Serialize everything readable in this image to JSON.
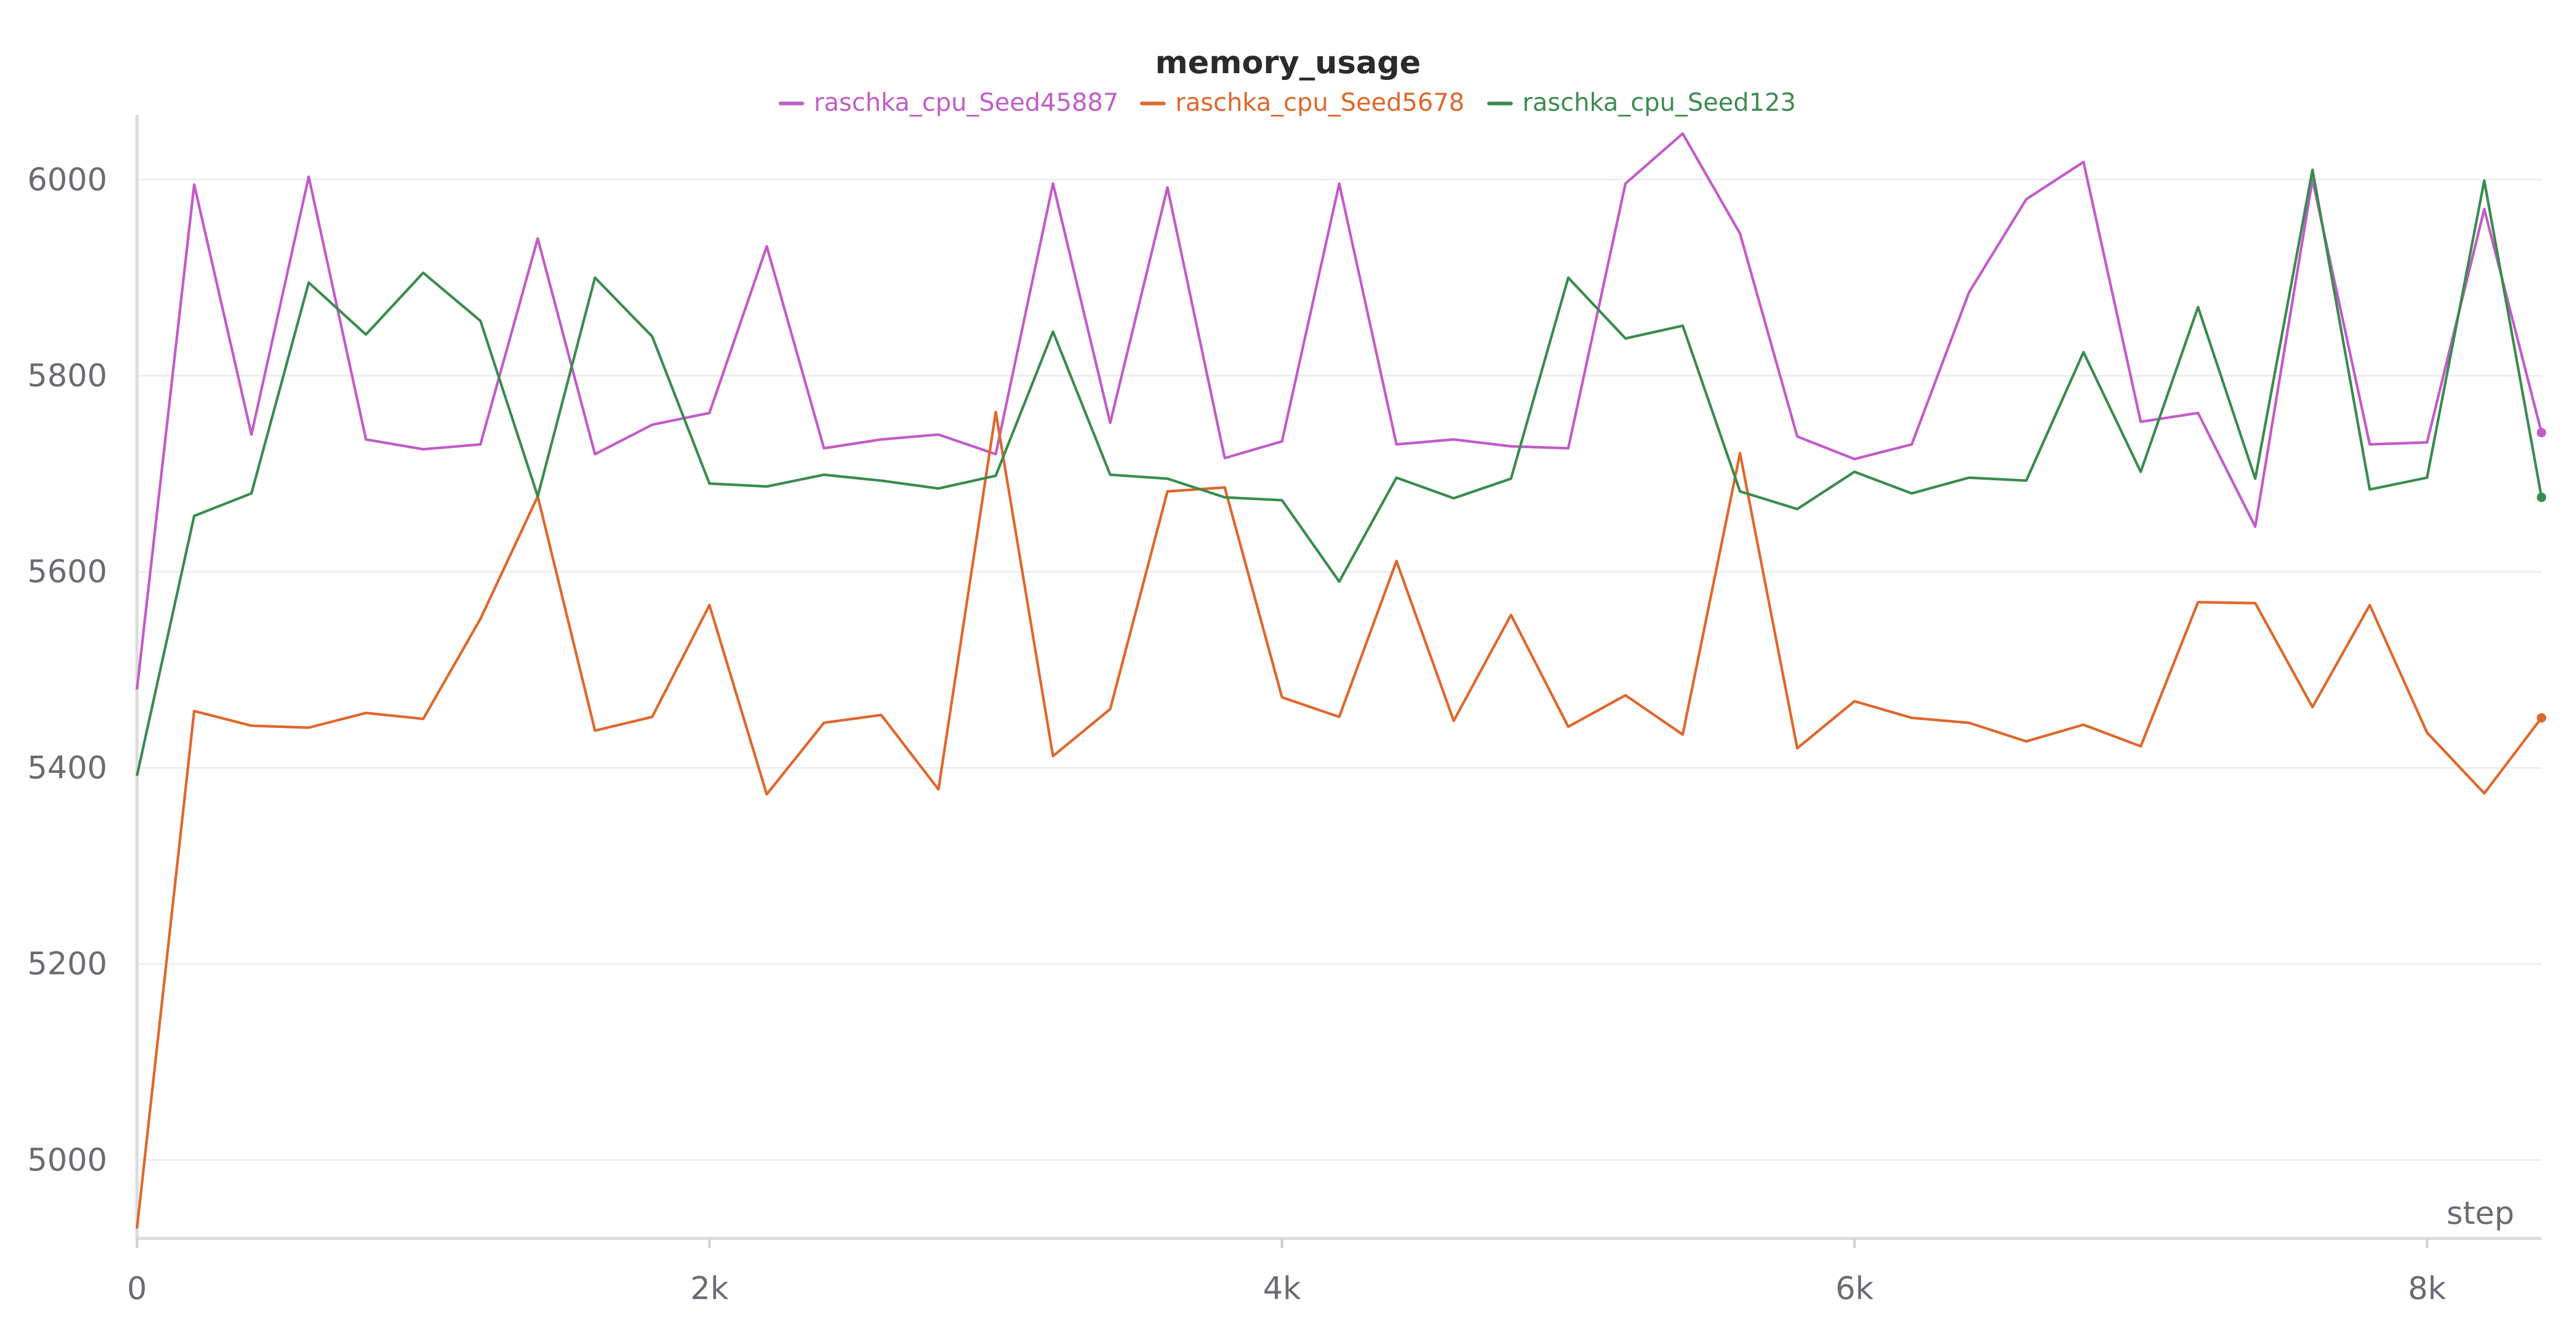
{
  "chart_data": {
    "type": "line",
    "title": "memory_usage",
    "xlabel": "step",
    "ylabel": "",
    "xlim": [
      0,
      8400
    ],
    "ylim": [
      4920,
      6050
    ],
    "x_ticks": [
      0,
      2000,
      4000,
      6000,
      8000
    ],
    "x_tick_labels": [
      "0",
      "2k",
      "4k",
      "6k",
      "8k"
    ],
    "y_ticks": [
      5000,
      5200,
      5400,
      5600,
      5800,
      6000
    ],
    "y_tick_labels": [
      "5000",
      "5200",
      "5400",
      "5600",
      "5800",
      "6000"
    ],
    "grid": true,
    "legend_position": "top-center",
    "x": [
      0,
      200,
      400,
      600,
      800,
      1000,
      1200,
      1400,
      1600,
      1800,
      2000,
      2200,
      2400,
      2600,
      2800,
      3000,
      3200,
      3400,
      3600,
      3800,
      4000,
      4200,
      4400,
      4600,
      4800,
      5000,
      5200,
      5400,
      5600,
      5800,
      6000,
      6200,
      6400,
      6600,
      6800,
      7000,
      7200,
      7400,
      7600,
      7800,
      8000,
      8200,
      8400
    ],
    "series": [
      {
        "name": "raschka_cpu_Seed45887",
        "color": "#c35bc9",
        "values": [
          5480,
          5995,
          5740,
          6003,
          5735,
          5725,
          5730,
          5940,
          5720,
          5750,
          5762,
          5932,
          5726,
          5735,
          5740,
          5720,
          5996,
          5752,
          5992,
          5716,
          5733,
          5996,
          5730,
          5735,
          5728,
          5726,
          5996,
          6047,
          5945,
          5738,
          5715,
          5730,
          5885,
          5980,
          6018,
          5753,
          5762,
          5646,
          6000,
          5730,
          5732,
          5970,
          5742
        ]
      },
      {
        "name": "raschka_cpu_Seed5678",
        "color": "#e0672b",
        "values": [
          4930,
          5458,
          5443,
          5441,
          5456,
          5450,
          5552,
          5677,
          5438,
          5452,
          5566,
          5373,
          5446,
          5454,
          5378,
          5763,
          5412,
          5460,
          5682,
          5686,
          5472,
          5452,
          5611,
          5448,
          5556,
          5442,
          5474,
          5434,
          5721,
          5420,
          5468,
          5451,
          5446,
          5427,
          5444,
          5422,
          5569,
          5568,
          5462,
          5566,
          5436,
          5374,
          5451
        ]
      },
      {
        "name": "raschka_cpu_Seed123",
        "color": "#3a8c4e",
        "values": [
          5392,
          5657,
          5680,
          5895,
          5842,
          5905,
          5856,
          5677,
          5900,
          5840,
          5690,
          5687,
          5699,
          5693,
          5685,
          5698,
          5845,
          5699,
          5695,
          5676,
          5673,
          5590,
          5696,
          5675,
          5695,
          5900,
          5838,
          5851,
          5682,
          5664,
          5702,
          5680,
          5696,
          5693,
          5824,
          5702,
          5870,
          5695,
          6010,
          5684,
          5696,
          5999,
          5676
        ]
      }
    ]
  }
}
